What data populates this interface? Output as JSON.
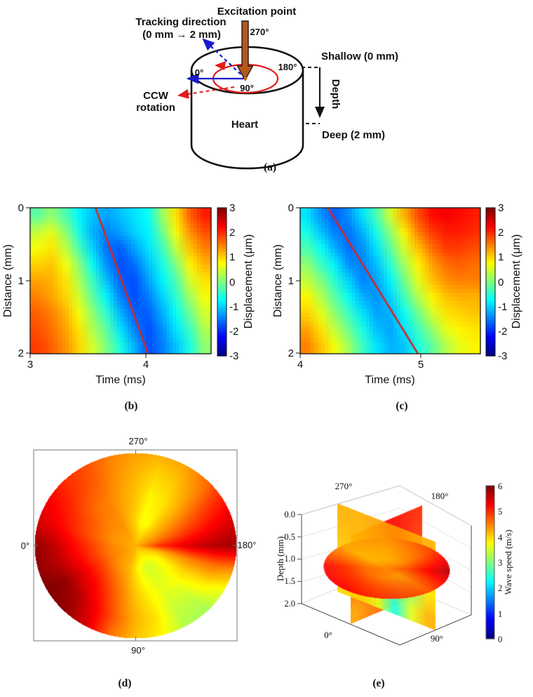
{
  "panel_a": {
    "caption": "(a)",
    "excitation_point": "Excitation point",
    "tracking_line1": "Tracking direction",
    "tracking_line2": "(0 mm → 2 mm)",
    "ccw_line1": "CCW",
    "ccw_line2": "rotation",
    "heart": "Heart",
    "shallow": "Shallow (0 mm)",
    "deep": "Deep (2 mm)",
    "depth": "Depth",
    "deg_270": "270°",
    "deg_180": "180°",
    "deg_90": "90°",
    "deg_0": "0°",
    "colors": {
      "excitation": "#b5591b",
      "tracking": "#1a1acc",
      "rotation": "#e31b1b"
    }
  },
  "chart_data": [
    {
      "type": "heatmap",
      "panel": "b",
      "caption": "(b)",
      "xlabel": "Time (ms)",
      "ylabel": "Distance (mm)",
      "xticks": [
        "3",
        "4"
      ],
      "yticks": [
        "0",
        "1",
        "2"
      ],
      "x_range": [
        3.0,
        4.55
      ],
      "y_range": [
        0,
        2
      ],
      "v_range": [
        -3,
        3
      ],
      "colorbar_label": "Displacement (μm)",
      "colorbar_ticks": [
        "3",
        "2",
        "1",
        "0",
        "-1",
        "-2",
        "-3"
      ],
      "wave_front_line": {
        "color": "#cc2b2b",
        "t": [
          3.56,
          4.01
        ],
        "d": [
          0,
          2
        ]
      },
      "values": [
        [
          -0.2,
          0.1,
          -0.3,
          -0.8,
          -1.1,
          -1.3,
          -1.1,
          -0.9,
          -0.7,
          0.2,
          0.9,
          1.7,
          2.1
        ],
        [
          0.4,
          0.6,
          0.1,
          -0.6,
          -1.2,
          -1.5,
          -1.3,
          -1.0,
          -0.8,
          -0.1,
          0.7,
          1.4,
          1.8
        ],
        [
          0.7,
          0.9,
          0.4,
          -0.3,
          -1.0,
          -1.6,
          -1.7,
          -1.3,
          -0.9,
          -0.4,
          0.4,
          1.1,
          1.5
        ],
        [
          1.0,
          1.1,
          0.7,
          0.1,
          -0.7,
          -1.4,
          -1.8,
          -1.6,
          -1.1,
          -0.6,
          0.0,
          0.8,
          1.2
        ],
        [
          1.3,
          1.2,
          0.9,
          0.3,
          -0.4,
          -1.1,
          -1.7,
          -1.8,
          -1.3,
          -0.8,
          -0.3,
          0.5,
          0.9
        ],
        [
          1.5,
          1.3,
          1.0,
          0.5,
          -0.2,
          -0.8,
          -1.5,
          -1.8,
          -1.5,
          -1.0,
          -0.5,
          0.2,
          0.7
        ],
        [
          1.7,
          1.5,
          1.2,
          0.7,
          0.1,
          -0.5,
          -1.2,
          -1.7,
          -1.7,
          -1.2,
          -0.7,
          -0.1,
          0.5
        ],
        [
          1.8,
          1.6,
          1.3,
          0.9,
          0.3,
          -0.2,
          -0.9,
          -1.5,
          -1.8,
          -1.4,
          -0.9,
          -0.4,
          0.3
        ],
        [
          1.9,
          1.7,
          1.4,
          1.0,
          0.5,
          0.0,
          -0.6,
          -1.2,
          -1.8,
          -1.5,
          -1.1,
          -0.6,
          0.1
        ]
      ]
    },
    {
      "type": "heatmap",
      "panel": "c",
      "caption": "(c)",
      "xlabel": "Time (ms)",
      "ylabel": "Distance (mm)",
      "xticks": [
        "4",
        "5"
      ],
      "yticks": [
        "0",
        "1",
        "2"
      ],
      "x_range": [
        4.0,
        5.5
      ],
      "y_range": [
        0,
        2
      ],
      "v_range": [
        -3,
        3
      ],
      "colorbar_label": "Displacement (μm)",
      "colorbar_ticks": [
        "3",
        "2",
        "1",
        "0",
        "-1",
        "-2",
        "-3"
      ],
      "wave_front_line": {
        "color": "#cc2b2b",
        "t": [
          4.23,
          4.98
        ],
        "d": [
          0,
          2
        ]
      },
      "values": [
        [
          -0.9,
          -1.4,
          -1.7,
          -1.4,
          -0.9,
          -0.3,
          0.5,
          1.2,
          1.8,
          2.2,
          2.3,
          2.2,
          2.1
        ],
        [
          -0.6,
          -1.1,
          -1.5,
          -1.6,
          -1.2,
          -0.6,
          0.1,
          0.8,
          1.5,
          1.9,
          2.1,
          2.1,
          2.0
        ],
        [
          -0.3,
          -0.7,
          -1.2,
          -1.6,
          -1.4,
          -0.9,
          -0.2,
          0.5,
          1.1,
          1.6,
          1.9,
          1.9,
          1.8
        ],
        [
          0.1,
          -0.4,
          -0.8,
          -1.4,
          -1.5,
          -1.1,
          -0.5,
          0.2,
          0.8,
          1.3,
          1.6,
          1.7,
          1.6
        ],
        [
          0.4,
          0.0,
          -0.5,
          -1.0,
          -1.5,
          -1.3,
          -0.8,
          -0.1,
          0.6,
          1.1,
          1.4,
          1.5,
          1.5
        ],
        [
          0.8,
          0.3,
          -0.2,
          -0.7,
          -1.2,
          -1.4,
          -1.0,
          -0.4,
          0.3,
          0.8,
          1.1,
          1.2,
          1.2
        ],
        [
          1.0,
          0.6,
          0.1,
          -0.4,
          -0.9,
          -1.3,
          -1.2,
          -0.7,
          -0.1,
          0.5,
          0.9,
          1.0,
          1.1
        ],
        [
          1.3,
          0.9,
          0.4,
          -0.1,
          -0.6,
          -1.1,
          -1.3,
          -0.9,
          -0.4,
          0.1,
          0.6,
          0.8,
          0.9
        ],
        [
          1.5,
          1.1,
          0.7,
          0.2,
          -0.4,
          -0.9,
          -1.2,
          -1.1,
          -0.6,
          -0.2,
          0.3,
          0.6,
          0.8
        ]
      ]
    },
    {
      "type": "polar-heatmap",
      "panel": "d",
      "caption": "(d)",
      "angle_label_top": "270°",
      "angle_label_left": "0°",
      "angle_label_right": "180°",
      "angle_label_bottom": "90°",
      "v_range": [
        0,
        6
      ],
      "center_value": 4.2,
      "radii": [
        0.25,
        0.55,
        0.8,
        1.0
      ],
      "angles_deg": [
        0,
        15,
        30,
        45,
        60,
        75,
        90,
        105,
        120,
        135,
        150,
        165,
        180,
        195,
        210,
        225,
        240,
        255,
        270,
        285,
        300,
        315,
        330,
        345
      ],
      "values": [
        [
          4.5,
          5.1,
          5.6,
          5.9
        ],
        [
          4.5,
          5.2,
          5.7,
          5.9
        ],
        [
          4.5,
          5.3,
          5.9,
          6.0
        ],
        [
          4.4,
          5.2,
          5.7,
          5.9
        ],
        [
          4.3,
          4.9,
          5.3,
          5.5
        ],
        [
          4.2,
          4.5,
          4.7,
          4.6
        ],
        [
          3.9,
          4.1,
          4.2,
          4.1
        ],
        [
          3.6,
          3.8,
          3.9,
          3.8
        ],
        [
          3.5,
          3.6,
          3.4,
          3.3
        ],
        [
          3.6,
          3.7,
          3.4,
          3.2
        ],
        [
          3.8,
          4.0,
          3.9,
          3.6
        ],
        [
          4.2,
          4.5,
          4.6,
          4.4
        ],
        [
          5.0,
          5.5,
          5.7,
          5.8
        ],
        [
          4.6,
          5.0,
          5.3,
          5.5
        ],
        [
          4.3,
          4.6,
          4.9,
          5.1
        ],
        [
          4.1,
          4.2,
          4.4,
          4.6
        ],
        [
          3.8,
          3.9,
          4.1,
          4.3
        ],
        [
          3.7,
          3.8,
          4.0,
          4.2
        ],
        [
          4.0,
          4.1,
          4.2,
          4.3
        ],
        [
          4.2,
          4.3,
          4.4,
          4.5
        ],
        [
          4.4,
          4.5,
          4.7,
          4.8
        ],
        [
          4.4,
          4.6,
          4.9,
          5.0
        ],
        [
          4.4,
          4.8,
          5.1,
          5.3
        ],
        [
          4.4,
          4.9,
          5.3,
          5.5
        ]
      ]
    },
    {
      "type": "3d-slices",
      "panel": "e",
      "caption": "(e)",
      "ylabel": "Depth (mm)",
      "depth_ticks": [
        "0.0",
        "0.5",
        "1.0",
        "1.5",
        "2.0"
      ],
      "corner_270": "270°",
      "corner_180": "180°",
      "corner_0": "0°",
      "corner_90": "90°",
      "colorbar_label": "Wave speed (m/s)",
      "colorbar_ticks": [
        "6",
        "5",
        "4",
        "3",
        "2",
        "1",
        "0"
      ],
      "v_range": [
        0,
        6
      ],
      "plane_0_180": {
        "values": [
          [
            4.8,
            5.0,
            5.2,
            5.2,
            5.1,
            5.0
          ],
          [
            4.9,
            5.1,
            5.2,
            5.1,
            5.0,
            4.9
          ],
          [
            4.6,
            4.8,
            4.9,
            4.8,
            4.8,
            4.7
          ],
          [
            4.3,
            4.5,
            4.6,
            4.5,
            4.4,
            4.4
          ]
        ]
      },
      "plane_270_90": {
        "values": [
          [
            4.2,
            4.2,
            4.3,
            4.4,
            4.3,
            4.2
          ],
          [
            4.1,
            4.2,
            4.2,
            4.0,
            3.7,
            4.0
          ],
          [
            4.0,
            4.1,
            3.9,
            3.3,
            3.0,
            3.9
          ],
          [
            4.0,
            4.0,
            3.6,
            2.4,
            3.6,
            4.2
          ]
        ]
      },
      "disc": {
        "depth_mm": 1.1,
        "center_value": 4.5,
        "radii": [
          0.3,
          0.65,
          1.0
        ],
        "angles_deg": [
          0,
          45,
          90,
          135,
          180,
          225,
          270,
          315
        ],
        "values": [
          [
            4.6,
            5.0,
            5.2
          ],
          [
            4.6,
            5.0,
            5.3
          ],
          [
            4.5,
            4.8,
            5.0
          ],
          [
            4.4,
            4.6,
            4.8
          ],
          [
            4.8,
            5.3,
            5.7
          ],
          [
            4.4,
            4.6,
            4.9
          ],
          [
            4.2,
            4.3,
            4.4
          ],
          [
            4.2,
            4.2,
            4.3
          ]
        ]
      }
    }
  ]
}
